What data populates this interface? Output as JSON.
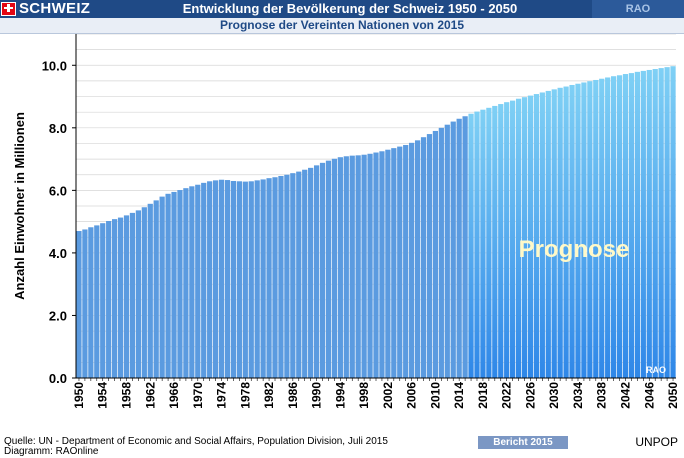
{
  "header": {
    "country_label": "SCHWEIZ",
    "title": "Entwicklung der Bevölkerung der Schweiz 1950 - 2050",
    "rao_label": "RAO",
    "subtitle": "Prognose der Vereinten Nationen von 2015"
  },
  "footer": {
    "source": "Quelle: UN - Department of Economic and Social Affairs, Population Division, Juli 2015",
    "diagram": "Diagramm: RAOnline",
    "report_badge": "Bericht 2015",
    "brand": "UNPOP"
  },
  "colors": {
    "header_bg": "#1f4a86",
    "historic_bar": "#5b9be0",
    "forecast_bar_dark": "#2f87e8",
    "forecast_bar_light": "#7fd0f5"
  },
  "chart_data": {
    "type": "bar",
    "ylabel": "Anzahl Einwohner in Millionen",
    "xlabel": "",
    "ylim": [
      0,
      11
    ],
    "yticks": [
      0,
      2,
      4,
      6,
      8,
      10
    ],
    "ytick_labels": [
      "0.0",
      "2.0",
      "4.0",
      "6.0",
      "8.0",
      "10.0"
    ],
    "grid": true,
    "forecast_start_year": 2016,
    "forecast_label": "Prognose",
    "watermark": "RAO",
    "xtick_labels": [
      "1950",
      "1954",
      "1958",
      "1962",
      "1966",
      "1970",
      "1974",
      "1978",
      "1982",
      "1986",
      "1990",
      "1994",
      "1998",
      "2002",
      "2006",
      "2010",
      "2014",
      "2018",
      "2022",
      "2026",
      "2030",
      "2034",
      "2038",
      "2042",
      "2046",
      "2050"
    ],
    "categories": [
      1950,
      1951,
      1952,
      1953,
      1954,
      1955,
      1956,
      1957,
      1958,
      1959,
      1960,
      1961,
      1962,
      1963,
      1964,
      1965,
      1966,
      1967,
      1968,
      1969,
      1970,
      1971,
      1972,
      1973,
      1974,
      1975,
      1976,
      1977,
      1978,
      1979,
      1980,
      1981,
      1982,
      1983,
      1984,
      1985,
      1986,
      1987,
      1988,
      1989,
      1990,
      1991,
      1992,
      1993,
      1994,
      1995,
      1996,
      1997,
      1998,
      1999,
      2000,
      2001,
      2002,
      2003,
      2004,
      2005,
      2006,
      2007,
      2008,
      2009,
      2010,
      2011,
      2012,
      2013,
      2014,
      2015,
      2016,
      2017,
      2018,
      2019,
      2020,
      2021,
      2022,
      2023,
      2024,
      2025,
      2026,
      2027,
      2028,
      2029,
      2030,
      2031,
      2032,
      2033,
      2034,
      2035,
      2036,
      2037,
      2038,
      2039,
      2040,
      2041,
      2042,
      2043,
      2044,
      2045,
      2046,
      2047,
      2048,
      2049,
      2050
    ],
    "values": [
      4.7,
      4.75,
      4.82,
      4.88,
      4.95,
      5.02,
      5.08,
      5.13,
      5.2,
      5.28,
      5.36,
      5.46,
      5.57,
      5.68,
      5.8,
      5.89,
      5.95,
      6.01,
      6.07,
      6.13,
      6.18,
      6.24,
      6.29,
      6.32,
      6.34,
      6.33,
      6.3,
      6.29,
      6.28,
      6.29,
      6.32,
      6.35,
      6.39,
      6.42,
      6.46,
      6.5,
      6.55,
      6.6,
      6.66,
      6.72,
      6.8,
      6.88,
      6.95,
      7.01,
      7.06,
      7.09,
      7.11,
      7.12,
      7.14,
      7.17,
      7.21,
      7.25,
      7.3,
      7.35,
      7.4,
      7.45,
      7.52,
      7.6,
      7.7,
      7.8,
      7.9,
      8.0,
      8.1,
      8.2,
      8.29,
      8.37,
      8.45,
      8.52,
      8.58,
      8.64,
      8.7,
      8.76,
      8.82,
      8.87,
      8.93,
      8.98,
      9.03,
      9.08,
      9.13,
      9.18,
      9.23,
      9.28,
      9.32,
      9.37,
      9.41,
      9.45,
      9.49,
      9.53,
      9.57,
      9.61,
      9.65,
      9.68,
      9.72,
      9.75,
      9.79,
      9.82,
      9.85,
      9.88,
      9.91,
      9.94,
      9.97
    ]
  }
}
